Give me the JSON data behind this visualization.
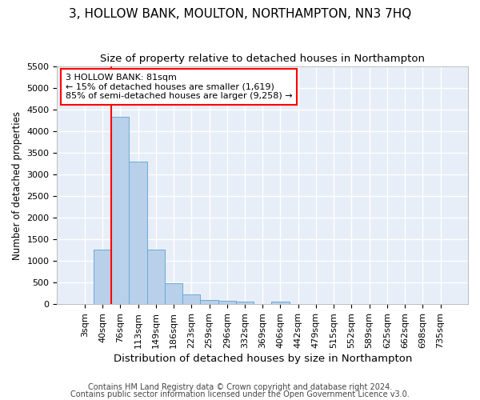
{
  "title": "3, HOLLOW BANK, MOULTON, NORTHAMPTON, NN3 7HQ",
  "subtitle": "Size of property relative to detached houses in Northampton",
  "xlabel": "Distribution of detached houses by size in Northampton",
  "ylabel": "Number of detached properties",
  "footnote1": "Contains HM Land Registry data © Crown copyright and database right 2024.",
  "footnote2": "Contains public sector information licensed under the Open Government Licence v3.0.",
  "bar_labels": [
    "3sqm",
    "40sqm",
    "76sqm",
    "113sqm",
    "149sqm",
    "186sqm",
    "223sqm",
    "259sqm",
    "296sqm",
    "332sqm",
    "369sqm",
    "406sqm",
    "442sqm",
    "479sqm",
    "515sqm",
    "552sqm",
    "589sqm",
    "625sqm",
    "662sqm",
    "698sqm",
    "735sqm"
  ],
  "bar_values": [
    0,
    1260,
    4340,
    3300,
    1260,
    490,
    220,
    90,
    70,
    55,
    0,
    55,
    0,
    0,
    0,
    0,
    0,
    0,
    0,
    0,
    0
  ],
  "bar_color": "#b8d0ea",
  "bar_edge_color": "#6aaad4",
  "annotation_text": "3 HOLLOW BANK: 81sqm\n← 15% of detached houses are smaller (1,619)\n85% of semi-detached houses are larger (9,258) →",
  "annotation_box_color": "white",
  "annotation_box_edge_color": "red",
  "vline_color": "red",
  "vline_x_index": 2,
  "ylim_max": 5500,
  "yticks": [
    0,
    500,
    1000,
    1500,
    2000,
    2500,
    3000,
    3500,
    4000,
    4500,
    5000,
    5500
  ],
  "bg_color": "#e8eef8",
  "grid_color": "white",
  "title_fontsize": 11,
  "subtitle_fontsize": 9.5,
  "xlabel_fontsize": 9.5,
  "ylabel_fontsize": 8.5,
  "tick_fontsize": 8,
  "annot_fontsize": 8,
  "footnote_fontsize": 7
}
